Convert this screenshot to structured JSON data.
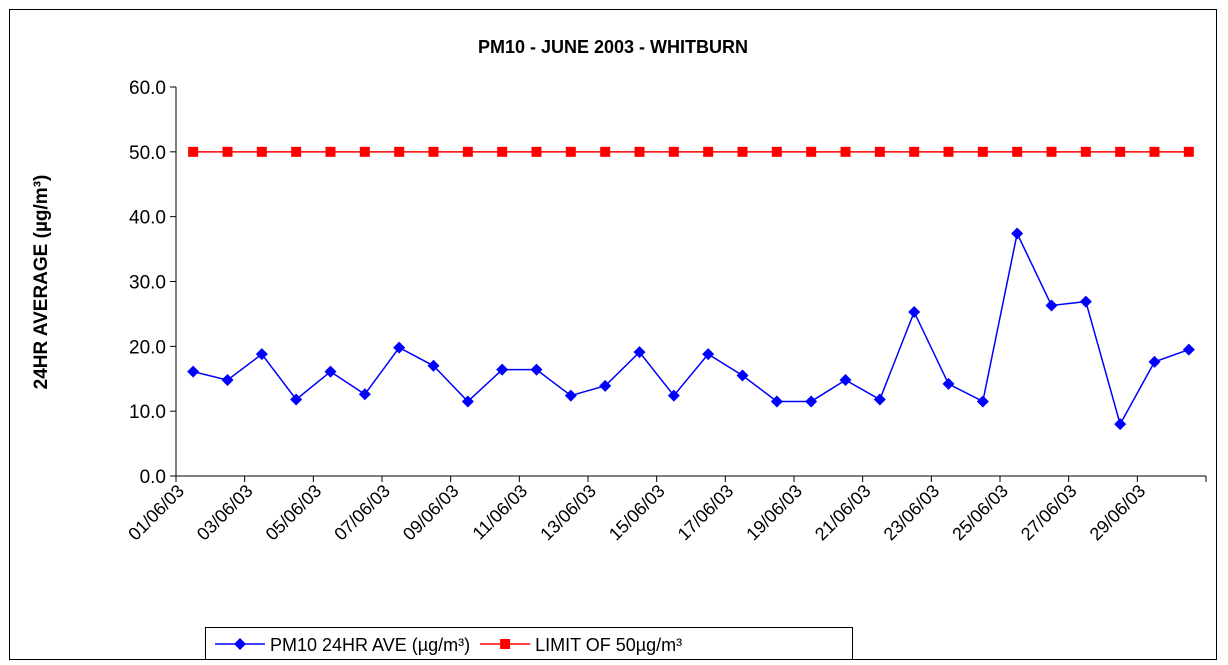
{
  "chart_data": {
    "type": "line",
    "title": "PM10 - JUNE 2003 - WHITBURN",
    "y_label": "24HR AVERAGE (µg/m³)",
    "categories": [
      "01/06/03",
      null,
      "03/06/03",
      null,
      "05/06/03",
      null,
      "07/06/03",
      null,
      "09/06/03",
      null,
      "11/06/03",
      null,
      "13/06/03",
      null,
      "15/06/03",
      null,
      "17/06/03",
      null,
      "19/06/03",
      null,
      "21/06/03",
      null,
      "23/06/03",
      null,
      "25/06/03",
      null,
      "27/06/03",
      null,
      "29/06/03",
      null
    ],
    "series": [
      {
        "name": "PM10 24HR AVE (µg/m³)",
        "color": "#0000ff",
        "marker": "diamond",
        "values": [
          16.1,
          14.8,
          18.8,
          11.8,
          16.1,
          12.6,
          19.8,
          17.0,
          11.5,
          16.4,
          16.4,
          12.4,
          13.9,
          19.1,
          12.4,
          18.8,
          15.5,
          11.5,
          11.5,
          14.8,
          11.8,
          25.3,
          14.2,
          11.5,
          37.4,
          26.3,
          26.9,
          8.0,
          17.6,
          19.5
        ]
      },
      {
        "name": "LIMIT OF 50µg/m³",
        "color": "#ff0000",
        "marker": "square",
        "values": [
          50,
          50,
          50,
          50,
          50,
          50,
          50,
          50,
          50,
          50,
          50,
          50,
          50,
          50,
          50,
          50,
          50,
          50,
          50,
          50,
          50,
          50,
          50,
          50,
          50,
          50,
          50,
          50,
          50,
          50
        ]
      }
    ],
    "ylim": [
      0,
      60
    ],
    "yticks": [
      {
        "value": 0,
        "label": "0.0"
      },
      {
        "value": 10,
        "label": "10.0"
      },
      {
        "value": 20,
        "label": "20.0"
      },
      {
        "value": 30,
        "label": "30.0"
      },
      {
        "value": 40,
        "label": "40.0"
      },
      {
        "value": 50,
        "label": "50.0"
      },
      {
        "value": 60,
        "label": "60.0"
      }
    ],
    "grid": false,
    "legend": "bottom"
  }
}
